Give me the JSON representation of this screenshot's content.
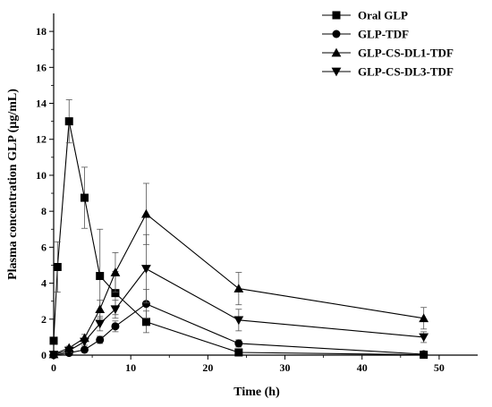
{
  "chart_data": {
    "type": "line",
    "title": "",
    "xlabel": "Time (h)",
    "ylabel": "Plasma concentration GLP (µg/mL)",
    "xlim": [
      0,
      55
    ],
    "ylim": [
      0,
      19
    ],
    "xticks": [
      0,
      10,
      20,
      30,
      40,
      50
    ],
    "yticks": [
      0,
      2,
      4,
      6,
      8,
      10,
      12,
      14,
      16,
      18
    ],
    "grid": false,
    "legend_position": "top-right",
    "series": [
      {
        "name": "Oral GLP",
        "marker": "square",
        "x": [
          0,
          0.5,
          2,
          4,
          6,
          8,
          12,
          24,
          48
        ],
        "y": [
          0.8,
          4.9,
          13.0,
          8.75,
          4.4,
          3.45,
          1.85,
          0.15,
          0.02
        ],
        "err": [
          0,
          1.4,
          1.2,
          1.7,
          2.6,
          1.2,
          0.6,
          0.1,
          0.02
        ]
      },
      {
        "name": "GLP-TDF",
        "marker": "circle",
        "x": [
          0,
          2,
          4,
          6,
          8,
          12,
          24,
          48
        ],
        "y": [
          0.0,
          0.12,
          0.3,
          0.85,
          1.6,
          2.85,
          0.65,
          0.05
        ],
        "err": [
          0,
          0.05,
          0.1,
          0.2,
          0.3,
          0.8,
          0.2,
          0.05
        ]
      },
      {
        "name": "GLP-CS-DL1-TDF",
        "marker": "triangle-up",
        "x": [
          0,
          2,
          4,
          6,
          8,
          12,
          24,
          48
        ],
        "y": [
          0.05,
          0.4,
          0.95,
          2.55,
          4.6,
          7.85,
          3.7,
          2.05
        ],
        "err": [
          0,
          0.1,
          0.2,
          0.5,
          1.1,
          1.7,
          0.9,
          0.6
        ]
      },
      {
        "name": "GLP-CS-DL3-TDF",
        "marker": "triangle-down",
        "x": [
          0,
          2,
          4,
          6,
          8,
          12,
          24,
          48
        ],
        "y": [
          0.03,
          0.25,
          0.75,
          1.75,
          2.55,
          4.8,
          1.95,
          1.0
        ],
        "err": [
          0,
          0.1,
          0.2,
          0.4,
          0.5,
          1.9,
          0.6,
          0.3
        ]
      }
    ]
  }
}
